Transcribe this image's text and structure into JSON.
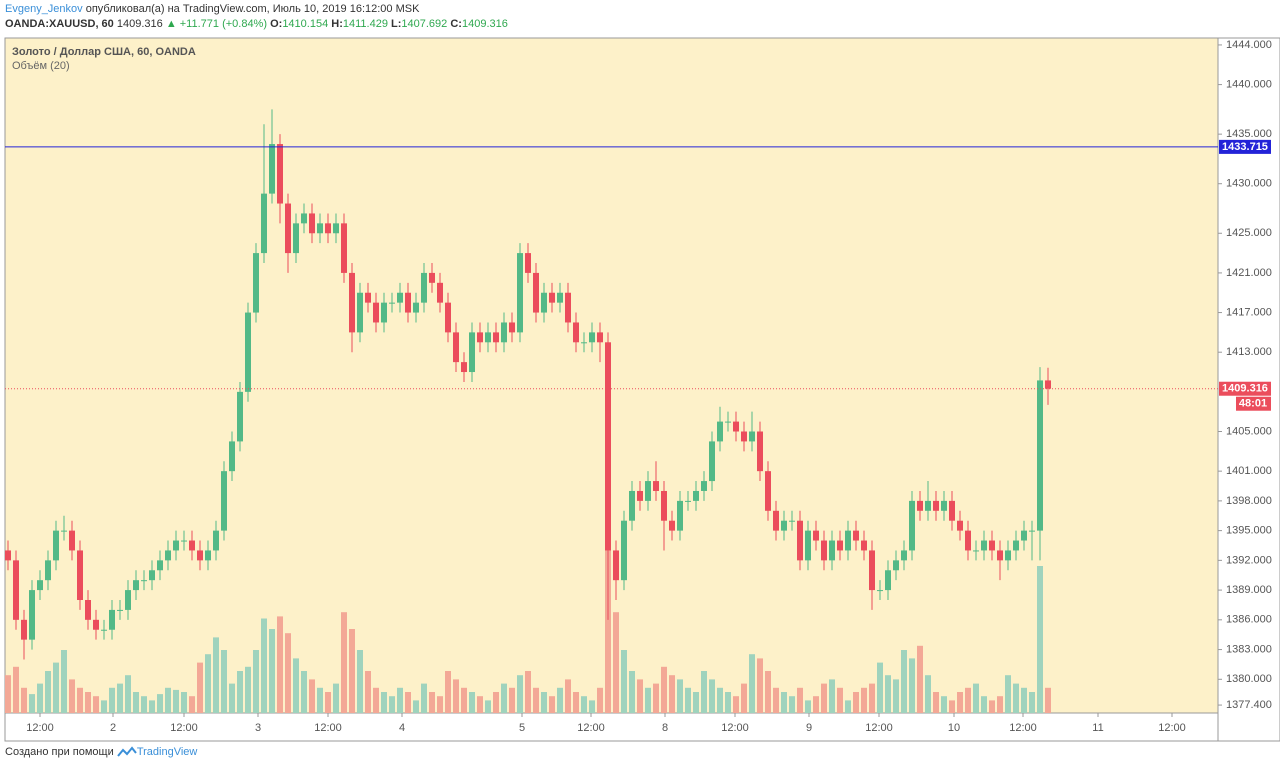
{
  "header": {
    "author": "Evgeny_Jenkov",
    "published": "опубликовал(а) на TradingView.com, Июль 10, 2019 16:12:00 MSK",
    "symbol": "OANDA:XAUUSD, 60",
    "last": "1409.316",
    "change": "▲ +11.771 (+0.84%)",
    "o_label": "O:",
    "open": "1410.154",
    "h_label": "H:",
    "high": "1411.429",
    "l_label": "L:",
    "low": "1407.692",
    "c_label": "C:",
    "close": "1409.316"
  },
  "footer": {
    "made_with": "Создано при помощи",
    "brand": "TradingView"
  },
  "chart_data": {
    "type": "candlestick",
    "title": "Золото / Доллар США, 60, OANDA",
    "subtitle": "Объём (20)",
    "background": "#fdf1c9",
    "up_color": "#53b987",
    "down_color": "#eb4d5c",
    "up_volume_color": "#9fd3bd",
    "down_volume_color": "#f3a896",
    "ylim": [
      1376.6,
      1444.7
    ],
    "yticks": [
      {
        "value": 1444,
        "label": "1444.000"
      },
      {
        "value": 1440,
        "label": "1440.000"
      },
      {
        "value": 1435,
        "label": "1435.000"
      },
      {
        "value": 1430,
        "label": "1430.000"
      },
      {
        "value": 1425,
        "label": "1425.000"
      },
      {
        "value": 1421,
        "label": "1421.000"
      },
      {
        "value": 1417,
        "label": "1417.000"
      },
      {
        "value": 1413,
        "label": "1413.000"
      },
      {
        "value": 1405,
        "label": "1405.000"
      },
      {
        "value": 1401,
        "label": "1401.000"
      },
      {
        "value": 1398,
        "label": "1398.000"
      },
      {
        "value": 1395,
        "label": "1395.000"
      },
      {
        "value": 1392,
        "label": "1392.000"
      },
      {
        "value": 1389,
        "label": "1389.000"
      },
      {
        "value": 1386,
        "label": "1386.000"
      },
      {
        "value": 1383,
        "label": "1383.000"
      },
      {
        "value": 1380,
        "label": "1380.000"
      },
      {
        "value": 1377.4,
        "label": "1377.400"
      }
    ],
    "xlabels": [
      "12:00",
      "2",
      "12:00",
      "3",
      "12:00",
      "4",
      "5",
      "12:00",
      "8",
      "12:00",
      "9",
      "12:00",
      "10",
      "12:00",
      "11",
      "12:00"
    ],
    "hline": {
      "value": 1433.715,
      "label": "1433.715",
      "color": "#2323d8"
    },
    "price_line": {
      "value": 1409.316,
      "label": "1409.316",
      "countdown": "48:01",
      "color": "#eb4d5c"
    },
    "open": [
      1393,
      1392,
      1386,
      1384,
      1389,
      1390,
      1392,
      1395,
      1395,
      1393,
      1388,
      1386,
      1385,
      1385,
      1387,
      1387,
      1389,
      1390,
      1390,
      1391,
      1392,
      1393,
      1394,
      1394,
      1393,
      1392,
      1393,
      1395,
      1401,
      1404,
      1409,
      1417,
      1423,
      1429,
      1434,
      1428,
      1423,
      1426,
      1427,
      1425,
      1426,
      1425,
      1426,
      1421,
      1415,
      1419,
      1418,
      1416,
      1418,
      1418,
      1419,
      1417,
      1418,
      1421,
      1420,
      1418,
      1415,
      1412,
      1411,
      1415,
      1414,
      1415,
      1414,
      1416,
      1415,
      1423,
      1421,
      1417,
      1419,
      1418,
      1419,
      1416,
      1414,
      1414,
      1415,
      1414,
      1393,
      1390,
      1396,
      1399,
      1398,
      1400,
      1399,
      1396,
      1395,
      1398,
      1398,
      1399,
      1400,
      1404,
      1406,
      1406,
      1405,
      1404,
      1405,
      1401,
      1397,
      1395,
      1396,
      1396,
      1392,
      1395,
      1394,
      1392,
      1394,
      1393,
      1395,
      1394,
      1393,
      1389,
      1389,
      1391,
      1392,
      1393,
      1398,
      1397,
      1398,
      1397,
      1398,
      1396,
      1395,
      1393,
      1393,
      1394,
      1393,
      1392,
      1393,
      1394,
      1395,
      1395,
      1410.154
    ],
    "high": [
      1394,
      1393,
      1387,
      1390,
      1391,
      1393,
      1396,
      1396.5,
      1396,
      1394,
      1389,
      1387,
      1386,
      1388,
      1388,
      1390,
      1391,
      1391,
      1392,
      1393,
      1394,
      1395,
      1395,
      1395,
      1394,
      1394,
      1396,
      1402,
      1405,
      1410,
      1418,
      1424,
      1436,
      1437.5,
      1435,
      1429,
      1427,
      1428,
      1428,
      1427,
      1427,
      1427,
      1427,
      1422,
      1420,
      1420,
      1419,
      1419,
      1419,
      1420,
      1420,
      1419,
      1422,
      1422,
      1421,
      1419,
      1416,
      1413,
      1416,
      1416,
      1416,
      1416,
      1417,
      1417,
      1424,
      1424,
      1422,
      1420,
      1420,
      1420,
      1420,
      1417,
      1415,
      1416,
      1416,
      1415,
      1394,
      1397,
      1400,
      1400,
      1401,
      1402,
      1400,
      1397,
      1399,
      1399,
      1400,
      1401,
      1405,
      1407.5,
      1407,
      1407,
      1406,
      1407,
      1406,
      1402,
      1398,
      1397,
      1397,
      1397,
      1396,
      1396,
      1395,
      1395,
      1395,
      1396,
      1396,
      1395,
      1394,
      1390,
      1392,
      1393,
      1394,
      1399,
      1399,
      1400,
      1399,
      1399,
      1399,
      1397,
      1396,
      1394,
      1395,
      1395,
      1394,
      1394,
      1395,
      1396,
      1396,
      1411.5,
      1411.429
    ],
    "low": [
      1391,
      1385,
      1382,
      1383,
      1388,
      1389,
      1391,
      1394,
      1392,
      1387,
      1385,
      1384,
      1384,
      1384,
      1386,
      1386,
      1388,
      1389,
      1389,
      1390,
      1391,
      1392,
      1393,
      1392,
      1391,
      1391,
      1392,
      1394,
      1400,
      1403,
      1408,
      1416,
      1422,
      1428,
      1426,
      1421,
      1422,
      1425,
      1424,
      1424,
      1424,
      1424,
      1420,
      1413,
      1414,
      1417,
      1415,
      1415,
      1417,
      1417,
      1416,
      1416,
      1417,
      1419,
      1417,
      1414,
      1411,
      1410,
      1410,
      1413,
      1413,
      1413,
      1413,
      1414,
      1414,
      1420,
      1416,
      1416,
      1417,
      1417,
      1415,
      1413,
      1413,
      1413,
      1412,
      1386,
      1388,
      1389,
      1395,
      1397,
      1397,
      1398,
      1393,
      1394,
      1394,
      1397,
      1397,
      1398,
      1399,
      1403,
      1405,
      1404,
      1403,
      1403,
      1400,
      1396,
      1394,
      1394,
      1395,
      1391,
      1391,
      1393,
      1391,
      1391,
      1392,
      1392,
      1393,
      1392,
      1387,
      1388,
      1388,
      1390,
      1391,
      1392,
      1396,
      1396,
      1396,
      1396,
      1395,
      1394,
      1392,
      1392,
      1392,
      1392,
      1390,
      1391,
      1392,
      1393,
      1392,
      1392,
      1407.692
    ],
    "close": [
      1392,
      1386,
      1384,
      1389,
      1390,
      1392,
      1395,
      1395,
      1393,
      1388,
      1386,
      1385,
      1385,
      1387,
      1387,
      1389,
      1390,
      1390,
      1391,
      1392,
      1393,
      1394,
      1394,
      1393,
      1392,
      1393,
      1395,
      1401,
      1404,
      1409,
      1417,
      1423,
      1429,
      1434,
      1428,
      1423,
      1426,
      1427,
      1425,
      1426,
      1425,
      1426,
      1421,
      1415,
      1419,
      1418,
      1416,
      1418,
      1418,
      1419,
      1417,
      1418,
      1421,
      1420,
      1418,
      1415,
      1412,
      1411,
      1415,
      1414,
      1415,
      1414,
      1416,
      1415,
      1423,
      1421,
      1417,
      1419,
      1418,
      1419,
      1416,
      1414,
      1414,
      1415,
      1414,
      1393,
      1390,
      1396,
      1399,
      1398,
      1400,
      1399,
      1396,
      1395,
      1398,
      1398,
      1399,
      1400,
      1404,
      1406,
      1406,
      1405,
      1404,
      1405,
      1401,
      1397,
      1395,
      1396,
      1396,
      1392,
      1395,
      1394,
      1392,
      1394,
      1393,
      1395,
      1394,
      1393,
      1389,
      1389,
      1391,
      1392,
      1393,
      1398,
      1397,
      1398,
      1397,
      1398,
      1396,
      1395,
      1393,
      1393,
      1394,
      1393,
      1392,
      1393,
      1394,
      1395,
      1395,
      1410.154,
      1409.316
    ],
    "volume": [
      18,
      22,
      12,
      9,
      14,
      20,
      24,
      30,
      16,
      12,
      10,
      8,
      6,
      12,
      14,
      18,
      10,
      8,
      6,
      9,
      12,
      11,
      10,
      8,
      24,
      28,
      36,
      30,
      14,
      20,
      22,
      30,
      45,
      40,
      46,
      38,
      26,
      20,
      16,
      12,
      10,
      14,
      48,
      40,
      30,
      20,
      12,
      10,
      8,
      12,
      10,
      6,
      14,
      10,
      8,
      20,
      16,
      12,
      10,
      8,
      6,
      10,
      14,
      12,
      18,
      20,
      12,
      10,
      8,
      12,
      16,
      10,
      8,
      6,
      12,
      80,
      48,
      30,
      20,
      16,
      12,
      14,
      22,
      18,
      16,
      12,
      10,
      20,
      16,
      12,
      10,
      8,
      14,
      28,
      26,
      20,
      12,
      10,
      8,
      12,
      6,
      8,
      14,
      16,
      12,
      6,
      10,
      12,
      14,
      24,
      18,
      16,
      30,
      26,
      32,
      18,
      10,
      8,
      6,
      10,
      12,
      14,
      8,
      6,
      8,
      18,
      14,
      12,
      10,
      70,
      12
    ]
  }
}
